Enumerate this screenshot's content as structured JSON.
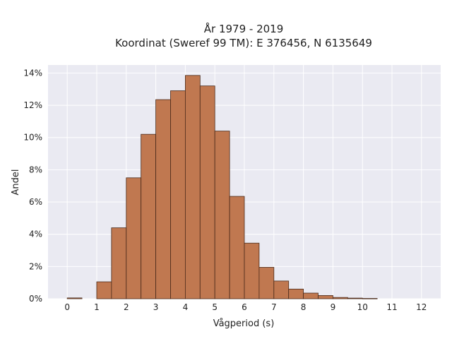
{
  "chart_data": {
    "type": "bar",
    "title_lines": [
      "År 1979 - 2019",
      "Koordinat (Sweref 99 TM): E 376456, N 6135649"
    ],
    "xlabel": "Vågperiod (s)",
    "ylabel": "Andel",
    "xlim": [
      -0.65,
      12.65
    ],
    "ylim": [
      0,
      14.5
    ],
    "x_ticks": [
      0,
      1,
      2,
      3,
      4,
      5,
      6,
      7,
      8,
      9,
      10,
      11,
      12
    ],
    "x_tick_labels": [
      "0",
      "1",
      "2",
      "3",
      "4",
      "5",
      "6",
      "7",
      "8",
      "9",
      "10",
      "11",
      "12"
    ],
    "y_ticks": [
      0,
      2,
      4,
      6,
      8,
      10,
      12,
      14
    ],
    "y_tick_labels": [
      "0%",
      "2%",
      "4%",
      "6%",
      "8%",
      "10%",
      "12%",
      "14%"
    ],
    "bin_width": 0.5,
    "bin_starts": [
      0,
      1,
      1.5,
      2,
      2.5,
      3,
      3.5,
      4,
      4.5,
      5,
      5.5,
      6,
      6.5,
      7,
      7.5,
      8,
      8.5,
      9,
      9.5,
      10
    ],
    "values": [
      0.05,
      1.05,
      4.4,
      7.5,
      10.2,
      12.35,
      12.9,
      13.85,
      13.2,
      10.4,
      6.35,
      3.45,
      1.95,
      1.1,
      0.6,
      0.35,
      0.2,
      0.08,
      0.04,
      0.02
    ],
    "grid": true,
    "legend": "none",
    "colors": {
      "bar_fill": "#c07850",
      "bar_edge": "#4a2a1a",
      "plot_bg": "#eaeaf2",
      "grid": "#ffffff"
    }
  }
}
